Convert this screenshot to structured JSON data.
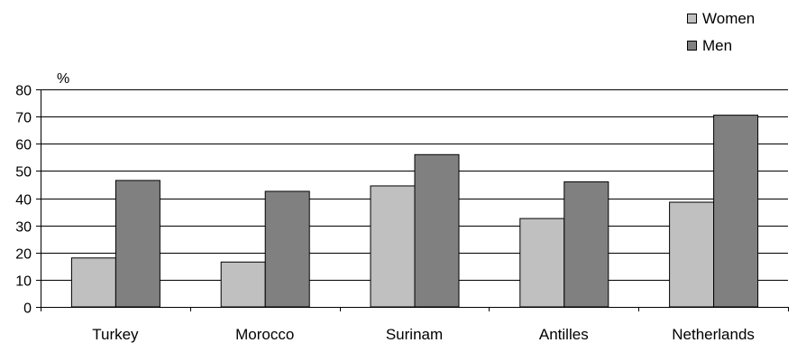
{
  "chart_data": {
    "type": "bar",
    "title": "",
    "xlabel": "",
    "ylabel": "%",
    "ylim": [
      0,
      80
    ],
    "yticks": [
      0,
      10,
      20,
      30,
      40,
      50,
      60,
      70,
      80
    ],
    "grid": true,
    "legend_position": "top-right",
    "categories": [
      "Turkey",
      "Morocco",
      "Surinam",
      "Antilles",
      "Netherlands"
    ],
    "series": [
      {
        "name": "Women",
        "color": "#c0c0c0",
        "values": [
          18,
          16.5,
          44.5,
          32.5,
          38.5
        ]
      },
      {
        "name": "Men",
        "color": "#808080",
        "values": [
          46.5,
          42.5,
          56,
          46,
          70.5
        ]
      }
    ]
  }
}
